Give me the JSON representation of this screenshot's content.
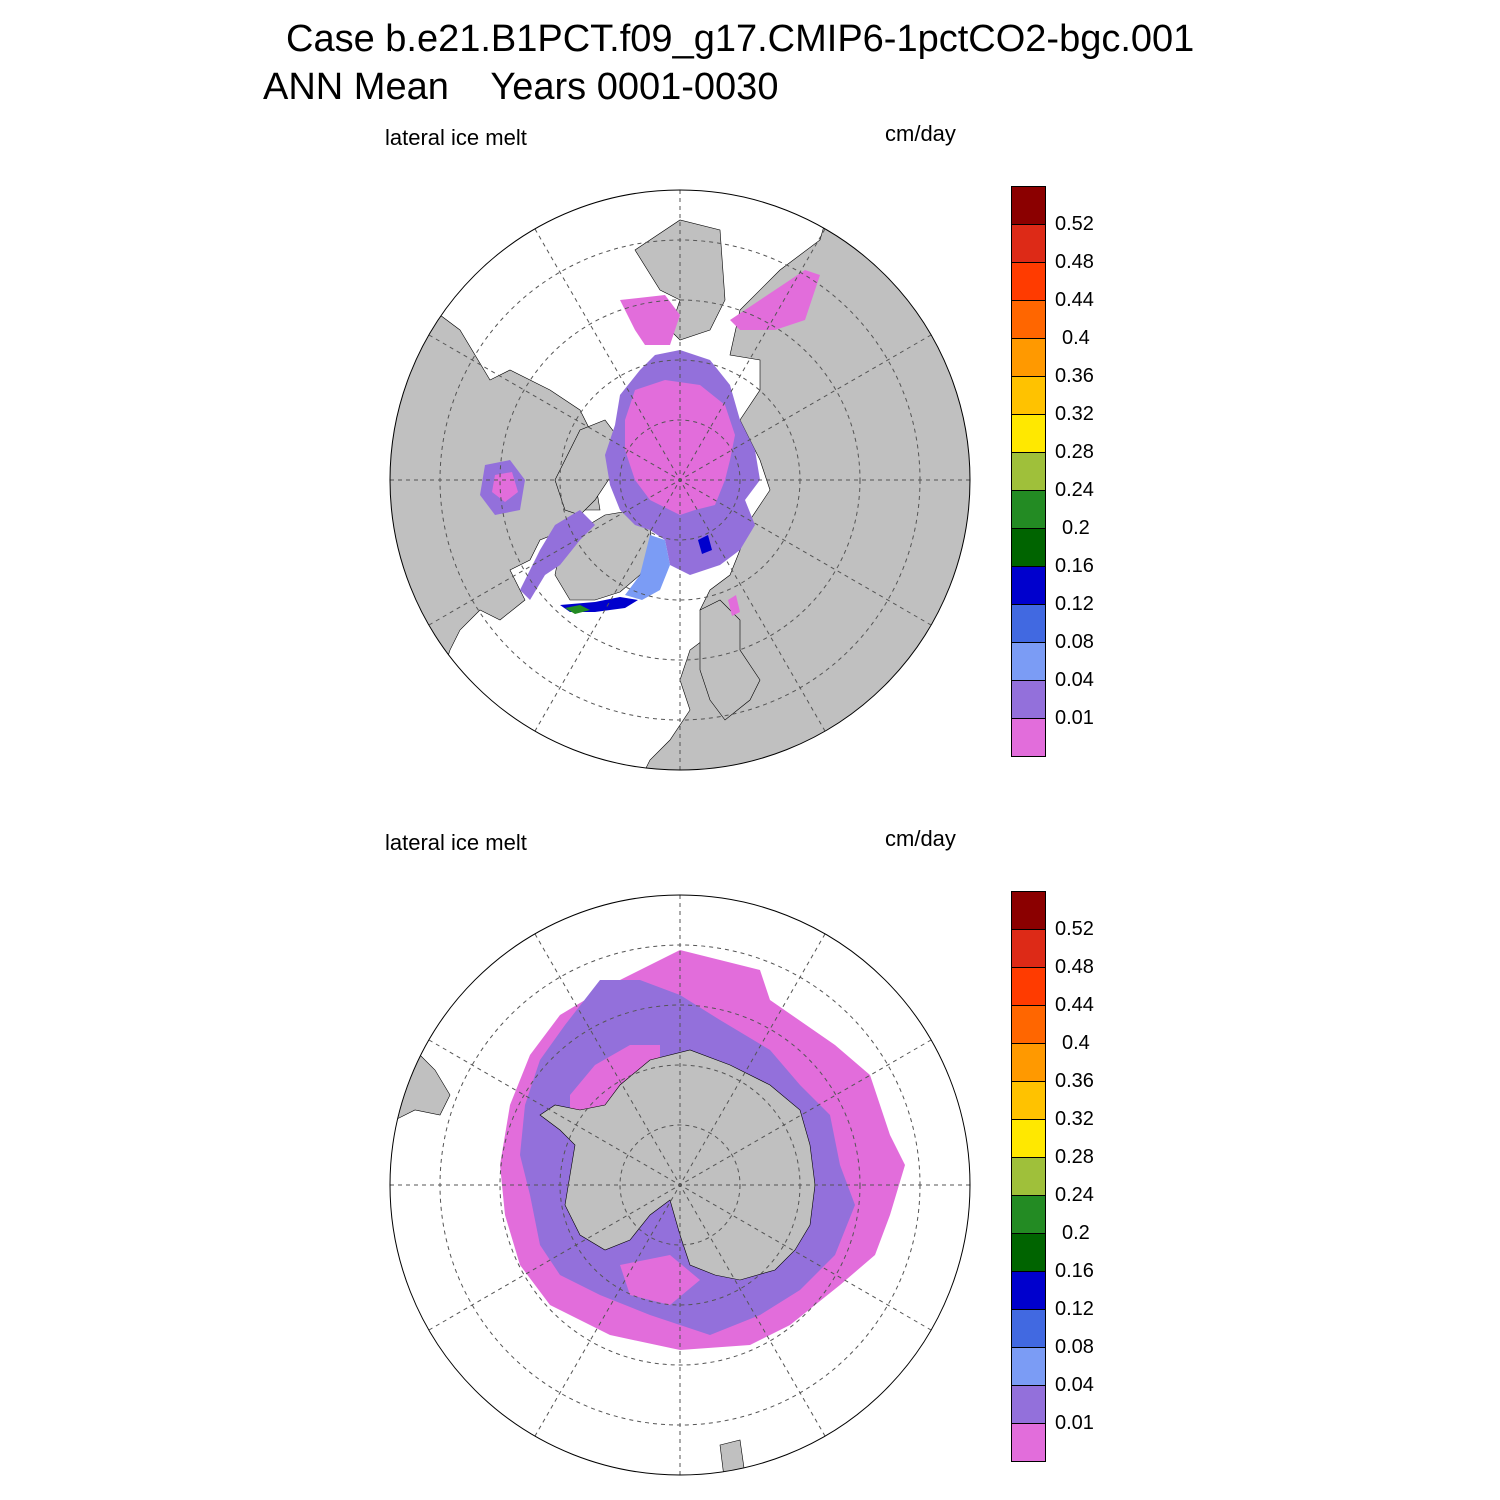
{
  "header": {
    "title_line1": "Case b.e21.B1PCT.f09_g17.CMIP6-1pctCO2-bgc.001",
    "title_line2": "ANN Mean    Years 0001-0030"
  },
  "panels": [
    {
      "hemisphere": "north",
      "left_label": "lateral ice melt",
      "right_label": "cm/day"
    },
    {
      "hemisphere": "south",
      "left_label": "lateral ice melt",
      "right_label": "cm/day"
    }
  ],
  "colorbar": {
    "labels": [
      "0.52",
      "0.48",
      "0.44",
      "0.4",
      "0.36",
      "0.32",
      "0.28",
      "0.24",
      "0.2",
      "0.16",
      "0.12",
      "0.08",
      "0.04",
      "0.01"
    ],
    "colors": [
      "#8b0000",
      "#dd2a17",
      "#ff3b00",
      "#ff6600",
      "#ff9900",
      "#ffc200",
      "#ffe800",
      "#9fc03a",
      "#238b23",
      "#006400",
      "#0000cd",
      "#4169e1",
      "#7b9cf5",
      "#9370db",
      "#e26ddb"
    ]
  },
  "colors": {
    "land": "#c0c0c0",
    "ocean": "#ffffff",
    "grid": "#555555"
  }
}
